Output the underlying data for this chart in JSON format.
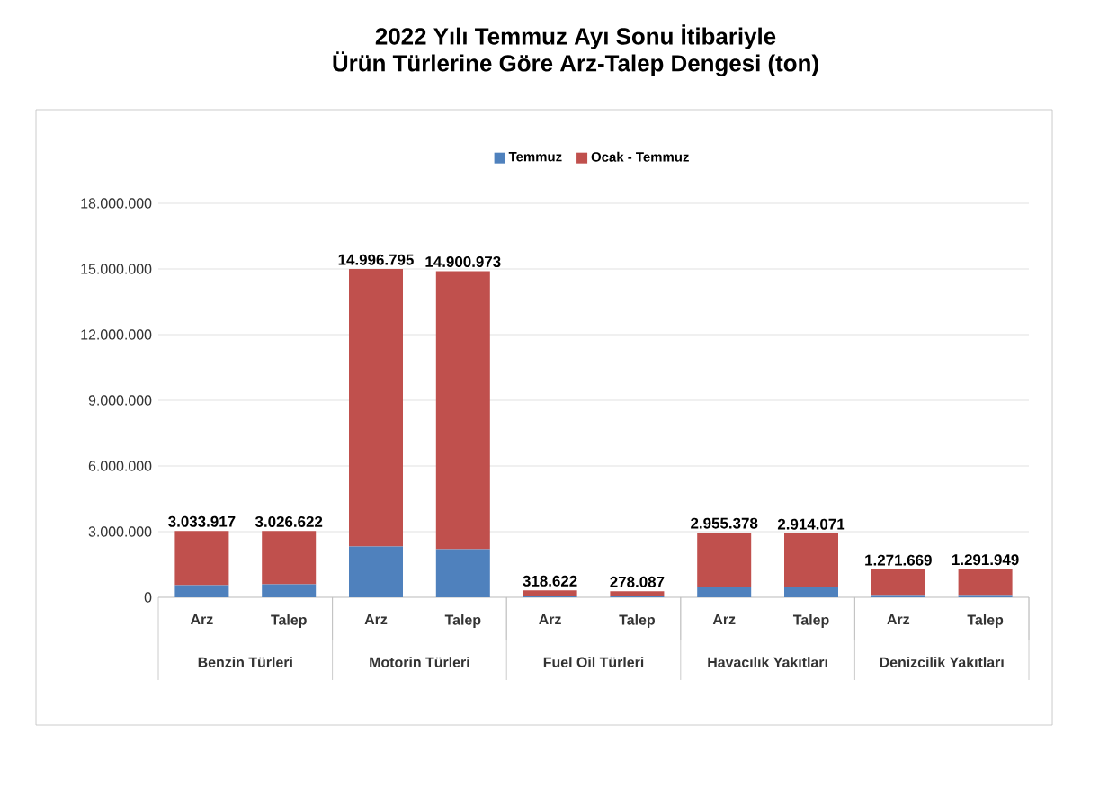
{
  "chart_data": {
    "type": "bar",
    "title": "2022 Yılı Temmuz Ayı Sonu İtibariyle\nÜrün Türlerine Göre Arz-Talep Dengesi (ton)",
    "categories": [
      "Arz",
      "Talep",
      "Arz",
      "Talep",
      "Arz",
      "Talep",
      "Arz",
      "Talep",
      "Arz",
      "Talep"
    ],
    "annotations": [
      "Benzin Türleri",
      "Motorin Türleri",
      "Fuel Oil Türleri",
      "Havacılık Yakıtları",
      "Denizcilik Yakıtları"
    ],
    "stacked": true,
    "series": [
      {
        "name": "Temmuz",
        "color": "#4f81bd",
        "values": [
          550000,
          600000,
          2320000,
          2200000,
          40000,
          40000,
          480000,
          480000,
          100000,
          100000
        ]
      },
      {
        "name": "Ocak - Temmuz",
        "color": "#c0504d",
        "values": [
          2483917,
          2426622,
          12676795,
          12700973,
          278622,
          238087,
          2475378,
          2434071,
          1171669,
          1191949
        ]
      }
    ],
    "totals": [
      "3.033.917",
      "3.026.622",
      "14.996.795",
      "14.900.973",
      "318.622",
      "278.087",
      "2.955.378",
      "2.914.071",
      "1.271.669",
      "1.291.949"
    ],
    "ylim": [
      0,
      18000000
    ],
    "yticks": [
      {
        "value": 0,
        "label": "0"
      },
      {
        "value": 3000000,
        "label": "3.000.000"
      },
      {
        "value": 6000000,
        "label": "6.000.000"
      },
      {
        "value": 9000000,
        "label": "9.000.000"
      },
      {
        "value": 12000000,
        "label": "12.000.000"
      },
      {
        "value": 15000000,
        "label": "15.000.000"
      },
      {
        "value": 18000000,
        "label": "18.000.000"
      }
    ],
    "grid": "y",
    "legend": "top"
  }
}
